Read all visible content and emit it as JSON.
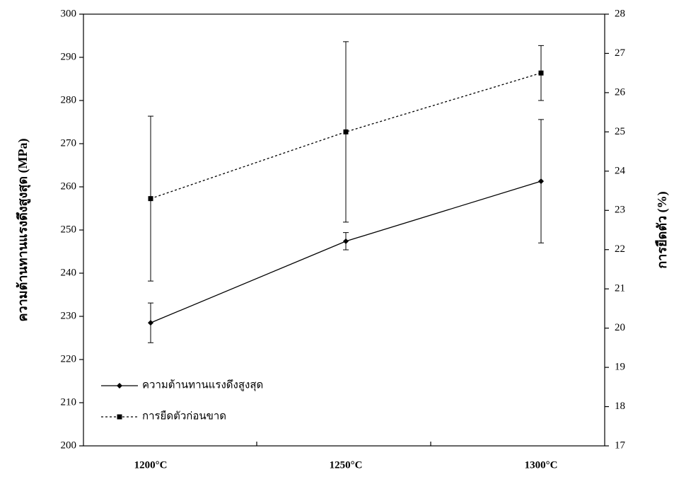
{
  "chart_data": {
    "type": "line",
    "categories": [
      "1200°C",
      "1250°C",
      "1300°C"
    ],
    "y_label": "ความต้านทานแรงดึงสูงสุด (MPa)",
    "y2_label": "การยืดตัว (%)",
    "ylim": [
      200,
      300
    ],
    "yticks": [
      200,
      210,
      220,
      230,
      240,
      250,
      260,
      270,
      280,
      290,
      300
    ],
    "y2lim": [
      17,
      28
    ],
    "y2ticks": [
      17,
      18,
      19,
      20,
      21,
      22,
      23,
      24,
      25,
      26,
      27,
      28
    ],
    "legend": "lower left",
    "series": [
      {
        "name": "ความต้านทานแรงดึงสูงสุด",
        "color": "#000000",
        "dash": "solid",
        "marker": "diamond",
        "values": [
          228.5,
          247.4,
          261.3
        ],
        "errors": [
          4.6,
          2.0,
          14.3
        ]
      },
      {
        "name": "การยืดตัวก่อนขาด",
        "color": "#000000",
        "dash": "dotted",
        "marker": "square",
        "axis": "y2",
        "values": [
          23.3,
          25.0,
          26.5
        ],
        "errors": [
          2.1,
          2.3,
          0.7
        ]
      }
    ]
  }
}
